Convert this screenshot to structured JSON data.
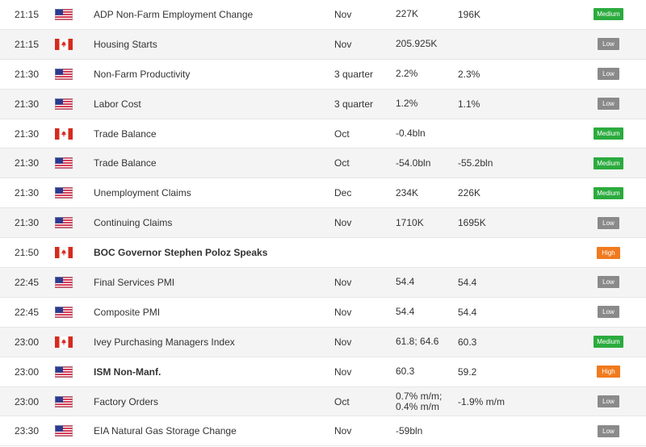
{
  "rows": [
    {
      "time": "21:15",
      "country": "US",
      "event": "ADP Non-Farm Employment Change",
      "bold": false,
      "period": "Nov",
      "actual": "227K",
      "forecast": "196K",
      "impact": "Medium"
    },
    {
      "time": "21:15",
      "country": "CA",
      "event": "Housing Starts",
      "bold": false,
      "period": "Nov",
      "actual": "205.925K",
      "forecast": "",
      "impact": "Low"
    },
    {
      "time": "21:30",
      "country": "US",
      "event": "Non-Farm Productivity",
      "bold": false,
      "period": "3 quarter",
      "actual": "2.2%",
      "forecast": "2.3%",
      "impact": "Low"
    },
    {
      "time": "21:30",
      "country": "US",
      "event": "Labor Cost",
      "bold": false,
      "period": "3 quarter",
      "actual": "1.2%",
      "forecast": "1.1%",
      "impact": "Low"
    },
    {
      "time": "21:30",
      "country": "CA",
      "event": "Trade Balance",
      "bold": false,
      "period": "Oct",
      "actual": "-0.4bln",
      "forecast": "",
      "impact": "Medium"
    },
    {
      "time": "21:30",
      "country": "US",
      "event": "Trade Balance",
      "bold": false,
      "period": "Oct",
      "actual": "-54.0bln",
      "forecast": "-55.2bln",
      "impact": "Medium"
    },
    {
      "time": "21:30",
      "country": "US",
      "event": "Unemployment Claims",
      "bold": false,
      "period": "Dec",
      "actual": "234K",
      "forecast": "226K",
      "impact": "Medium"
    },
    {
      "time": "21:30",
      "country": "US",
      "event": "Continuing Claims",
      "bold": false,
      "period": "Nov",
      "actual": "1710K",
      "forecast": "1695K",
      "impact": "Low"
    },
    {
      "time": "21:50",
      "country": "CA",
      "event": "BOC Governor Stephen Poloz Speaks",
      "bold": true,
      "period": "",
      "actual": "",
      "forecast": "",
      "impact": "High"
    },
    {
      "time": "22:45",
      "country": "US",
      "event": "Final Services PMI",
      "bold": false,
      "period": "Nov",
      "actual": "54.4",
      "forecast": "54.4",
      "impact": "Low"
    },
    {
      "time": "22:45",
      "country": "US",
      "event": "Composite PMI",
      "bold": false,
      "period": "Nov",
      "actual": "54.4",
      "forecast": "54.4",
      "impact": "Low"
    },
    {
      "time": "23:00",
      "country": "CA",
      "event": "Ivey Purchasing Managers Index",
      "bold": false,
      "period": "Nov",
      "actual": "61.8; 64.6",
      "forecast": "60.3",
      "impact": "Medium"
    },
    {
      "time": "23:00",
      "country": "US",
      "event": "ISM Non-Manf.",
      "bold": true,
      "period": "Nov",
      "actual": "60.3",
      "forecast": "59.2",
      "impact": "High"
    },
    {
      "time": "23:00",
      "country": "US",
      "event": "Factory Orders",
      "bold": false,
      "period": "Oct",
      "actual": "0.7% m/m; 0.4% m/m",
      "forecast": "-1.9% m/m",
      "impact": "Low"
    },
    {
      "time": "23:30",
      "country": "US",
      "event": "EIA Natural Gas Storage Change",
      "bold": false,
      "period": "Nov",
      "actual": "-59bln",
      "forecast": "",
      "impact": "Low"
    }
  ],
  "colors": {
    "low": "#8a8a8a",
    "medium": "#2bab3e",
    "high": "#f07a1e",
    "row_alt": "#f4f4f4"
  },
  "icons": {
    "US": "us-flag-icon",
    "CA": "canada-flag-icon"
  }
}
